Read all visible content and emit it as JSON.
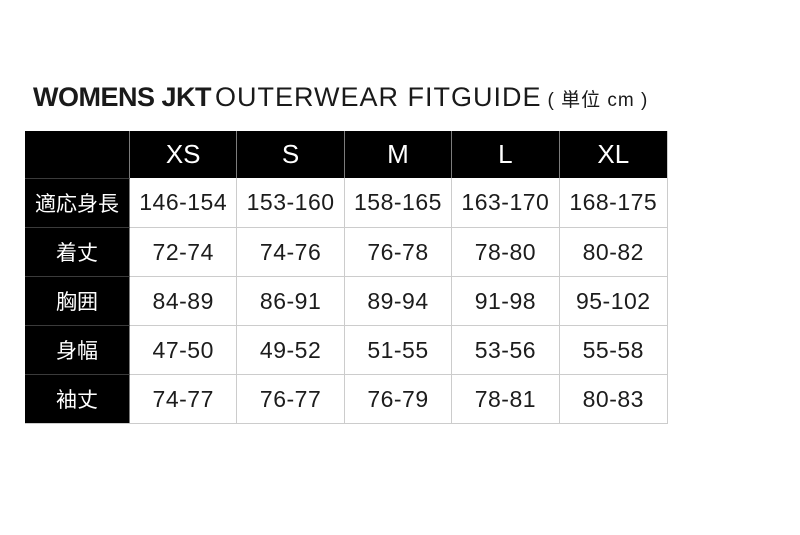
{
  "title": {
    "brand": "WOMENS JKT",
    "main": "OUTERWEAR FITGUIDE",
    "unit": "( 単位 cm )"
  },
  "table": {
    "size_headers": [
      "XS",
      "S",
      "M",
      "L",
      "XL"
    ],
    "rows": [
      {
        "label": "適応身長",
        "values": [
          "146-154",
          "153-160",
          "158-165",
          "163-170",
          "168-175"
        ]
      },
      {
        "label": "着丈",
        "values": [
          "72-74",
          "74-76",
          "76-78",
          "78-80",
          "80-82"
        ]
      },
      {
        "label": "胸囲",
        "values": [
          "84-89",
          "86-91",
          "89-94",
          "91-98",
          "95-102"
        ]
      },
      {
        "label": "身幅",
        "values": [
          "47-50",
          "49-52",
          "51-55",
          "53-56",
          "55-58"
        ]
      },
      {
        "label": "袖丈",
        "values": [
          "74-77",
          "76-77",
          "76-79",
          "78-81",
          "80-83"
        ]
      }
    ]
  },
  "colors": {
    "header_bg": "#000000",
    "header_text": "#ffffff",
    "cell_bg": "#ffffff",
    "cell_text": "#1c1c1c",
    "grid_light": "#cccccc",
    "grid_on_black_vertical": "#7c7c7c",
    "grid_on_black_horizontal": "#3b3b3b"
  },
  "chart_data": {
    "type": "table",
    "title": "WOMENS JKT OUTERWEAR FITGUIDE ( 単位 cm )",
    "unit": "cm",
    "columns": [
      "",
      "XS",
      "S",
      "M",
      "L",
      "XL"
    ],
    "rows": [
      [
        "適応身長",
        "146-154",
        "153-160",
        "158-165",
        "163-170",
        "168-175"
      ],
      [
        "着丈",
        "72-74",
        "74-76",
        "76-78",
        "78-80",
        "80-82"
      ],
      [
        "胸囲",
        "84-89",
        "86-91",
        "89-94",
        "91-98",
        "95-102"
      ],
      [
        "身幅",
        "47-50",
        "49-52",
        "51-55",
        "53-56",
        "55-58"
      ],
      [
        "袖丈",
        "74-77",
        "76-77",
        "76-79",
        "78-81",
        "80-83"
      ]
    ]
  }
}
